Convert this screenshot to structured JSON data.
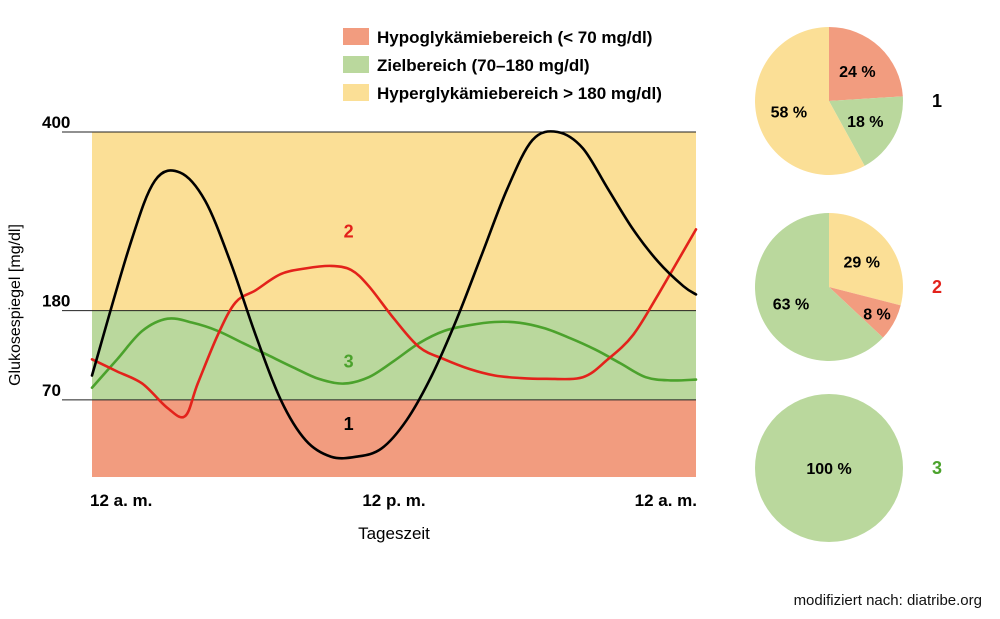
{
  "chart_data": {
    "type": "line",
    "ylabel": "Glukosespiegel [mg/dl]",
    "xlabel": "Tageszeit",
    "x_tick_labels": [
      "12 a. m.",
      "12 p. m.",
      "12 a. m."
    ],
    "y_tick_values": [
      70,
      180,
      400
    ],
    "y_tick_labels": [
      "70",
      "180",
      "400"
    ],
    "ylim": [
      -25,
      400
    ],
    "xlim": [
      0,
      24
    ],
    "zones": [
      {
        "label": "Hypoglykämiebereich (< 70 mg/dl)",
        "from": -25,
        "to": 70,
        "color": "#f29c7f"
      },
      {
        "label": "Zielbereich (70–180 mg/dl)",
        "from": 70,
        "to": 180,
        "color": "#bad89d"
      },
      {
        "label": "Hyperglykämiebereich > 180 mg/dl)",
        "from": 180,
        "to": 400,
        "color": "#fbdf96"
      }
    ],
    "series": [
      {
        "name": "1",
        "color": "#000000",
        "x": [
          0,
          1.5,
          2.5,
          3.5,
          4.5,
          5.5,
          6.5,
          7.5,
          8.5,
          9.5,
          10.5,
          11.5,
          12.5,
          13.5,
          14.5,
          15.5,
          16.5,
          17.5,
          18.5,
          19.5,
          20.5,
          21.5,
          22.5,
          23.5,
          24
        ],
        "values": [
          100,
          260,
          340,
          350,
          315,
          240,
          150,
          70,
          20,
          0,
          0,
          10,
          45,
          100,
          170,
          250,
          330,
          390,
          400,
          380,
          330,
          280,
          240,
          210,
          200
        ],
        "label_at": [
          10.0,
          33
        ]
      },
      {
        "name": "2",
        "color": "#e3221b",
        "x": [
          0,
          1.0,
          2.0,
          3.0,
          3.7,
          4.2,
          5.0,
          5.7,
          6.5,
          7.5,
          8.5,
          9.5,
          10.3,
          11.0,
          12.0,
          13.0,
          14.0,
          15.0,
          16.0,
          17.0,
          18.0,
          19.5,
          20.5,
          21.5,
          22.5,
          24
        ],
        "values": [
          120,
          105,
          90,
          60,
          50,
          90,
          150,
          190,
          205,
          225,
          232,
          235,
          230,
          210,
          170,
          135,
          120,
          108,
          100,
          97,
          96,
          98,
          120,
          150,
          200,
          280
        ],
        "label_at": [
          10.0,
          270
        ]
      },
      {
        "name": "3",
        "color": "#4ba22c",
        "x": [
          0,
          1.0,
          2.0,
          3.0,
          4.0,
          5.0,
          6.0,
          7.0,
          8.0,
          9.0,
          10.0,
          11.0,
          12.0,
          13.0,
          14.0,
          15.0,
          16.0,
          17.0,
          18.0,
          19.0,
          20.0,
          21.0,
          22.0,
          23.0,
          24
        ],
        "values": [
          85,
          120,
          155,
          170,
          165,
          155,
          140,
          125,
          110,
          96,
          90,
          98,
          118,
          140,
          155,
          162,
          166,
          165,
          158,
          146,
          132,
          115,
          98,
          94,
          95
        ],
        "label_at": [
          10.0,
          110
        ]
      }
    ],
    "pies": [
      {
        "name": "1",
        "label_color": "#000000",
        "slices": [
          {
            "label": "24 %",
            "value": 24,
            "color": "#f29c7f"
          },
          {
            "label": "18 %",
            "value": 18,
            "color": "#bad89d"
          },
          {
            "label": "58 %",
            "value": 58,
            "color": "#fbdf96"
          }
        ]
      },
      {
        "name": "2",
        "label_color": "#e3221b",
        "slices": [
          {
            "label": "29 %",
            "value": 29,
            "color": "#fbdf96"
          },
          {
            "label": "8 %",
            "value": 8,
            "color": "#f29c7f"
          },
          {
            "label": "63 %",
            "value": 63,
            "color": "#bad89d"
          }
        ]
      },
      {
        "name": "3",
        "label_color": "#4ba22c",
        "slices": [
          {
            "label": "100 %",
            "value": 100,
            "color": "#bad89d"
          }
        ]
      }
    ]
  },
  "footer": {
    "source": "modifiziert nach: diatribe.org"
  }
}
